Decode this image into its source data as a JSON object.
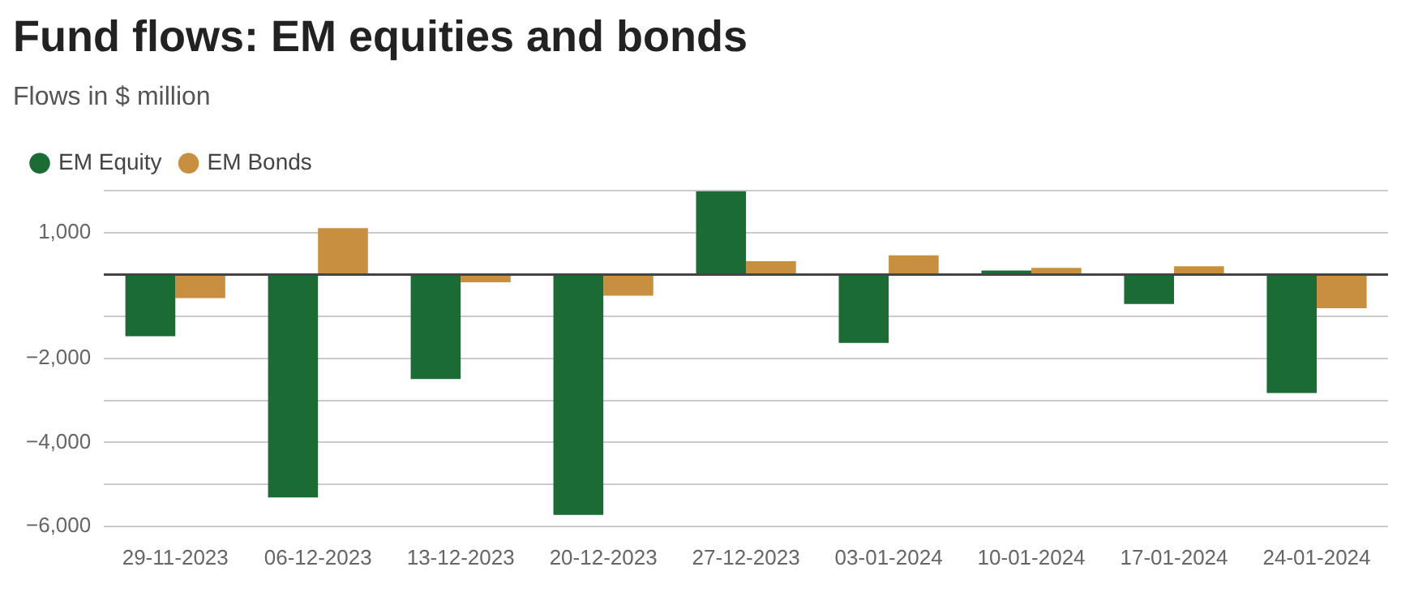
{
  "chart_data": {
    "type": "bar",
    "title": "Fund flows: EM equities and bonds",
    "subtitle": "Flows in $ million",
    "categories": [
      "29-11-2023",
      "06-12-2023",
      "13-12-2023",
      "20-12-2023",
      "27-12-2023",
      "03-01-2024",
      "10-01-2024",
      "17-01-2024",
      "24-01-2024"
    ],
    "series": [
      {
        "name": "EM Equity",
        "color": "#1b6b35",
        "values": [
          -1470,
          -5310,
          -2490,
          -5730,
          1990,
          -1630,
          100,
          -700,
          -2820
        ]
      },
      {
        "name": "EM Bonds",
        "color": "#c8903e",
        "values": [
          -560,
          1110,
          -180,
          -500,
          320,
          460,
          160,
          200,
          -800
        ]
      }
    ],
    "ylim": [
      -6000,
      2000
    ],
    "yticks": [
      {
        "value": 2000,
        "label": null
      },
      {
        "value": 1000,
        "label": "1,000"
      },
      {
        "value": 0,
        "label": null
      },
      {
        "value": -1000,
        "label": null
      },
      {
        "value": -2000,
        "label": "−2,000"
      },
      {
        "value": -3000,
        "label": null
      },
      {
        "value": -4000,
        "label": "−4,000"
      },
      {
        "value": -5000,
        "label": null
      },
      {
        "value": -6000,
        "label": "−6,000"
      }
    ],
    "grid": "y",
    "legend": "top left"
  }
}
